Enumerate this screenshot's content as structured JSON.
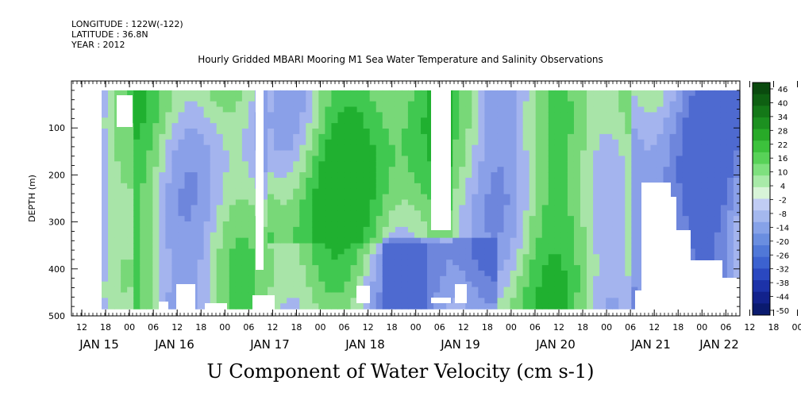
{
  "header": {
    "longitude": "LONGITUDE : 122W(-122)",
    "latitude": "LATITUDE : 36.8N",
    "year": "YEAR : 2012"
  },
  "chart_data": {
    "type": "heatmap",
    "title": "Hourly Gridded MBARI Mooring M1 Sea Water Temperature and Salinity Observations",
    "variable_title": "U Component of Water Velocity (cm s-1)",
    "ylabel": "DEPTH (m)",
    "ylim": [
      500,
      0
    ],
    "y_ticks": [
      100,
      200,
      300,
      400,
      500
    ],
    "x_hour_ticks": [
      "12",
      "18",
      "00",
      "06",
      "12",
      "18",
      "00",
      "06",
      "12",
      "18",
      "00",
      "06",
      "12",
      "18",
      "00",
      "06",
      "12",
      "18",
      "00",
      "06",
      "12",
      "18",
      "00",
      "06",
      "12",
      "18",
      "00",
      "06",
      "12",
      "18",
      "00",
      "06"
    ],
    "x_day_labels": [
      "JAN 15",
      "JAN 16",
      "JAN 17",
      "JAN 18",
      "JAN 19",
      "JAN 20",
      "JAN 21",
      "JAN 22"
    ],
    "colorbar": {
      "labels": [
        "46",
        "40",
        "34",
        "28",
        "22",
        "16",
        "10",
        "4",
        "-2",
        "-8",
        "-14",
        "-20",
        "-26",
        "-32",
        "-38",
        "-44",
        "-50"
      ],
      "range": [
        -50,
        52
      ],
      "colors": [
        "#0a1a6e",
        "#12228c",
        "#1c32a8",
        "#2a48c0",
        "#3c62d0",
        "#5078d8",
        "#6a8ee0",
        "#86a2e8",
        "#a4b8ee",
        "#c0ccf4",
        "#d8f4d8",
        "#a8eaa8",
        "#7ee07e",
        "#58d258",
        "#3cc23c",
        "#28aa28",
        "#1c9020",
        "#147818",
        "#0e6012",
        "#0a4a0e"
      ]
    },
    "field_hours": 168,
    "field_depth": [
      20,
      485
    ],
    "field_colors": {
      "negative": "#8aa0e8",
      "positive": "#40c840",
      "mixed": "#a8e4a8"
    },
    "gaps_description": "white missing-data regions"
  }
}
